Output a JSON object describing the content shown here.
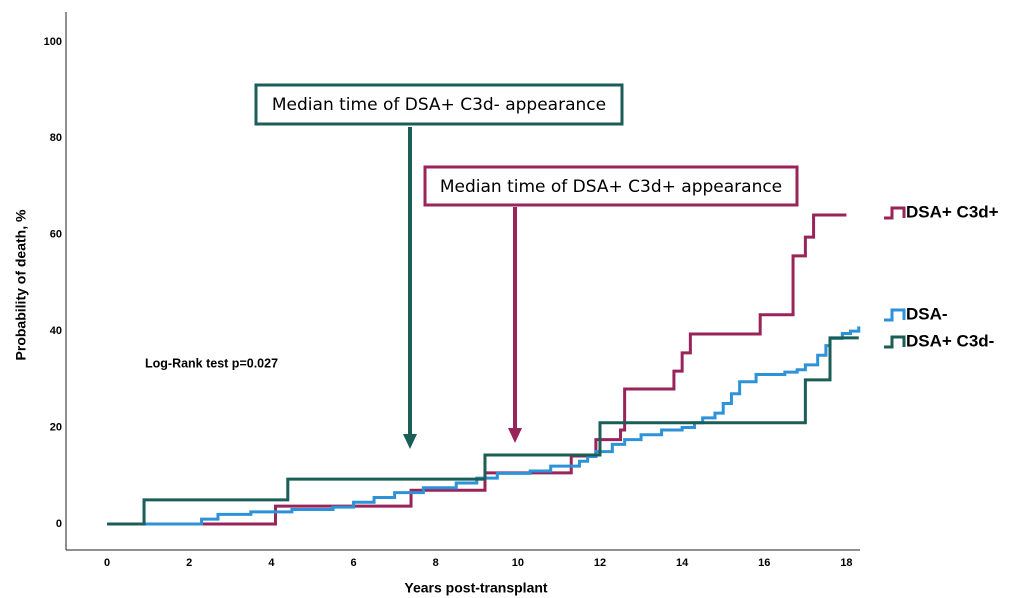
{
  "chart_data": {
    "type": "line",
    "step": true,
    "x_label": "Years post-transplant",
    "y_label": "Probability of death, %",
    "annotation_stat": "Log-Rank test p=0.027",
    "annotation_c3d_neg": "Median time of DSA+ C3d- appearance",
    "annotation_c3d_pos": "Median time of DSA+ C3d+ appearance",
    "xlim": [
      -1,
      18.33
    ],
    "ylim": [
      -5.4,
      106.2
    ],
    "xticks": [
      0,
      2,
      4,
      6,
      8,
      10,
      12,
      14,
      16,
      18
    ],
    "yticks": [
      0,
      20,
      40,
      60,
      80,
      100
    ],
    "series": [
      {
        "name": "DSA+ C3d+",
        "color": "#98245a",
        "x": [
          0,
          4.1,
          7.4,
          9.2,
          11.3,
          11.9,
          12.5,
          12.6,
          13.8,
          14.0,
          14.2,
          15.9,
          16.7,
          17.0,
          17.2,
          18.0
        ],
        "values": [
          0,
          3.7,
          7.0,
          10.6,
          14.1,
          17.5,
          19.5,
          28,
          31.7,
          35.5,
          39.4,
          43.4,
          55.6,
          59.5,
          64.1,
          64.1
        ]
      },
      {
        "name": "DSA-",
        "color": "#2e92d8",
        "x": [
          0,
          2.3,
          2.7,
          3.5,
          4.5,
          5.5,
          6.0,
          6.5,
          7.0,
          7.7,
          8.5,
          9.0,
          9.5,
          10.3,
          10.8,
          11.5,
          11.7,
          11.9,
          12.3,
          12.6,
          13.0,
          13.5,
          14.0,
          14.3,
          14.5,
          14.8,
          15.0,
          15.2,
          15.4,
          15.8,
          16.5,
          16.8,
          17.0,
          17.3,
          17.5,
          17.6,
          17.9,
          18.1,
          18.3
        ],
        "values": [
          0,
          1,
          2,
          2.5,
          3,
          3.5,
          4.5,
          5.5,
          6.5,
          7.5,
          8.5,
          9.5,
          10.5,
          11,
          12,
          13,
          14,
          15,
          16.5,
          17.5,
          18.5,
          19.5,
          20,
          21,
          22,
          23,
          25,
          27,
          29.5,
          31,
          31.5,
          32,
          33,
          35,
          37,
          38.5,
          39.5,
          40,
          41
        ]
      },
      {
        "name": "DSA+ C3d-",
        "color": "#1b5e57",
        "x": [
          0,
          0.9,
          4.4,
          9.2,
          12.0,
          17.0,
          17.6,
          18.3
        ],
        "values": [
          0,
          5.0,
          9.3,
          14.3,
          21,
          29.9,
          38.6,
          38.6
        ]
      }
    ]
  }
}
